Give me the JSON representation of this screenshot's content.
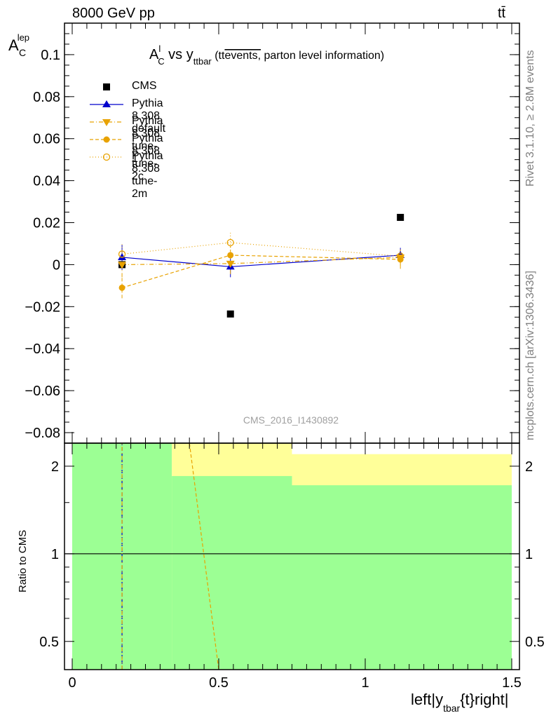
{
  "header": {
    "left": "8000 GeV pp",
    "right": "tt̄"
  },
  "side_labels": {
    "rivet": "Rivet 3.1.10, ≥ 2.8M events",
    "mcplots": "mcplots.cern.ch [arXiv:1306.3436]"
  },
  "watermark": "CMS_2016_I1430892",
  "colors": {
    "cms": "#000000",
    "default": "#0000cc",
    "tunes": "#e8a200",
    "band_green": "#9cff94",
    "band_yellow": "#ffff99"
  },
  "chart_data": [
    {
      "type": "scatter",
      "title": "A_C^l vs y_ttbar (tt̄events, parton level information)",
      "title_parts": {
        "main": "A",
        "main_sub": "C",
        "main_sup": "l",
        "vs": " vs y",
        "vs_sub": "ttbar",
        "note_pre": " (tt",
        "note_over": "events,",
        "note_post": " parton level information)"
      },
      "ylabel": {
        "main": "A",
        "sub": "C",
        "sup": "lep"
      },
      "ylim": [
        -0.085,
        0.115
      ],
      "yticks": [
        -0.08,
        -0.06,
        -0.04,
        -0.02,
        0,
        0.02,
        0.04,
        0.06,
        0.08,
        0.1
      ],
      "ytick_labels": [
        "−0.08",
        "−0.06",
        "−0.04",
        "−0.02",
        "0",
        "0.02",
        "0.04",
        "0.06",
        "0.08",
        "0.1"
      ],
      "xlim": [
        -0.025,
        1.5
      ],
      "legend_position": "top-left",
      "series": [
        {
          "name": "CMS",
          "marker": "square-filled",
          "line": "none",
          "x": [
            0.17,
            0.54,
            1.12
          ],
          "y": [
            0.0,
            -0.0235,
            0.0225
          ],
          "yerr": [
            0.0,
            0.0,
            0.0
          ]
        },
        {
          "name": "Pythia 8.308 default",
          "marker": "triangle-up-filled",
          "line": "solid",
          "x": [
            0.17,
            0.54,
            1.12
          ],
          "y": [
            0.0035,
            -0.001,
            0.0045
          ],
          "yerr": [
            0.006,
            0.005,
            0.0035
          ]
        },
        {
          "name": "Pythia 8.308 tune-1",
          "marker": "triangle-down-filled",
          "line": "dashdot",
          "x": [
            0.17,
            0.54,
            1.12
          ],
          "y": [
            0.0,
            0.0005,
            0.0035
          ],
          "yerr": [
            0.006,
            0.005,
            0.004
          ]
        },
        {
          "name": "Pythia 8.308 tune-2c",
          "marker": "circle-filled",
          "line": "dashed",
          "x": [
            0.17,
            0.54,
            1.12
          ],
          "y": [
            -0.011,
            0.0045,
            0.0025
          ],
          "yerr": [
            0.005,
            0.0045,
            0.0045
          ]
        },
        {
          "name": "Pythia 8.308 tune-2m",
          "marker": "circle-open",
          "line": "dotted",
          "x": [
            0.17,
            0.54,
            1.12
          ],
          "y": [
            0.005,
            0.0105,
            0.004
          ],
          "yerr": [
            0.005,
            0.005,
            0.004
          ]
        }
      ]
    },
    {
      "type": "line",
      "ylabel": "Ratio to CMS",
      "xlabel": {
        "pre": "left|y",
        "sub": "tbar",
        "post": "{t}right|"
      },
      "ylog": true,
      "ylim": [
        0.4,
        2.4
      ],
      "yticks": [
        0.5,
        1,
        2
      ],
      "ytick_labels": [
        "0.5",
        "1",
        "2"
      ],
      "xlim": [
        -0.025,
        1.5
      ],
      "xticks": [
        0,
        0.5,
        1,
        1.5
      ],
      "xtick_labels": [
        "0",
        "0.5",
        "1",
        "1.5"
      ],
      "reference_line": 1,
      "bands": [
        {
          "x0": 0,
          "x1": 0.34,
          "yellow": [
            0.4,
            2.4
          ],
          "green": [
            0.4,
            2.4
          ]
        },
        {
          "x0": 0.34,
          "x1": 0.75,
          "yellow": [
            0.4,
            2.4
          ],
          "green": [
            0.4,
            1.85
          ]
        },
        {
          "x0": 0.75,
          "x1": 1.5,
          "yellow": [
            0.4,
            2.2
          ],
          "green": [
            0.4,
            1.72
          ]
        }
      ],
      "series": [
        {
          "name": "Pythia 8.308 default",
          "line": "dashed",
          "x": [
            0.17,
            0.17
          ],
          "y": [
            0.4,
            2.4
          ]
        },
        {
          "name": "Pythia 8.308 tune-1",
          "line": "dashdot",
          "x": [
            0.17,
            0.17
          ],
          "y": [
            0.4,
            2.4
          ]
        },
        {
          "name": "Pythia 8.308 tune-2c",
          "line": "dashed",
          "x": [
            0.4,
            0.5
          ],
          "y": [
            2.4,
            0.4
          ]
        }
      ]
    }
  ]
}
